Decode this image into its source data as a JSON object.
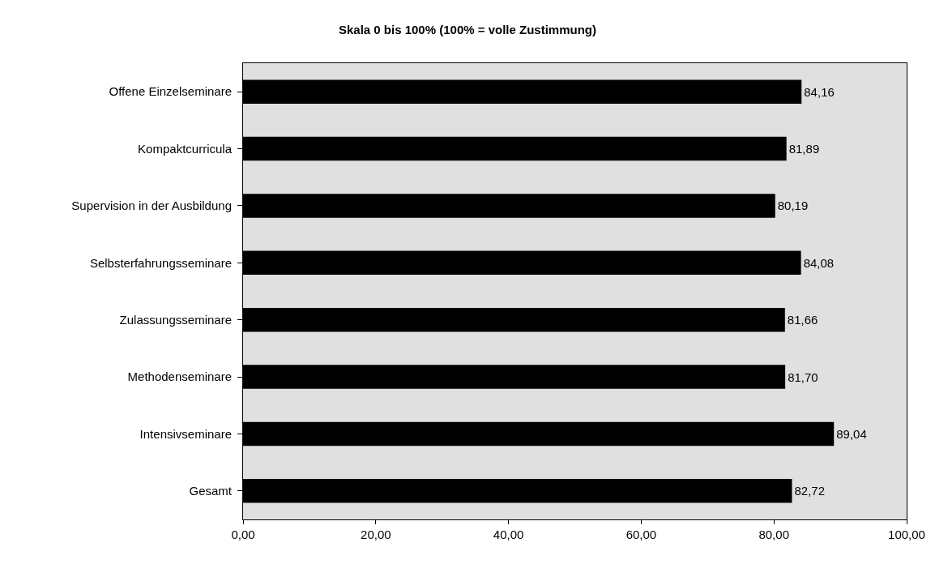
{
  "chart_data": {
    "type": "bar",
    "orientation": "horizontal",
    "title": "Skala 0 bis 100% (100% = volle Zustimmung)",
    "categories": [
      "Offene Einzelseminare",
      "Kompaktcurricula",
      "Supervision in der Ausbildung",
      "Selbsterfahrungsseminare",
      "Zulassungsseminare",
      "Methodenseminare",
      "Intensivseminare",
      "Gesamt"
    ],
    "values": [
      84.16,
      81.89,
      80.19,
      84.08,
      81.66,
      81.7,
      89.04,
      82.72
    ],
    "value_labels": [
      "84,16",
      "81,89",
      "80,19",
      "84,08",
      "81,66",
      "81,70",
      "89,04",
      "82,72"
    ],
    "color": "#000000",
    "xlim": [
      0,
      100
    ],
    "xticks": [
      {
        "value": 0,
        "label": "0,00"
      },
      {
        "value": 20,
        "label": "20,00"
      },
      {
        "value": 40,
        "label": "40,00"
      },
      {
        "value": 60,
        "label": "60,00"
      },
      {
        "value": 80,
        "label": "80,00"
      },
      {
        "value": 100,
        "label": "100,00"
      }
    ],
    "grid": false
  }
}
